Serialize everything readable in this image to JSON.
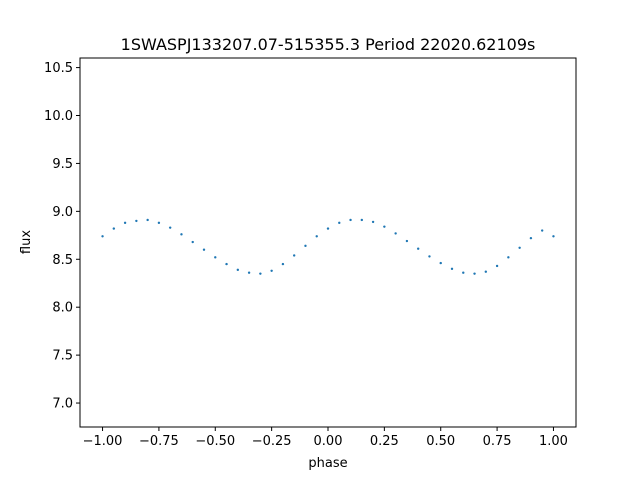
{
  "chart_data": {
    "type": "scatter",
    "title": "1SWASPJ133207.07-515355.3 Period 22020.62109s",
    "xlabel": "phase",
    "ylabel": "flux",
    "xlim": [
      -1.1,
      1.1
    ],
    "ylim": [
      6.75,
      10.6
    ],
    "x_ticks": [
      -1.0,
      -0.75,
      -0.5,
      -0.25,
      0.0,
      0.25,
      0.5,
      0.75,
      1.0
    ],
    "x_tick_labels": [
      "−1.00",
      "−0.75",
      "−0.50",
      "−0.25",
      "0.00",
      "0.25",
      "0.50",
      "0.75",
      "1.00"
    ],
    "y_ticks": [
      7.0,
      7.5,
      8.0,
      8.5,
      9.0,
      9.5,
      10.0,
      10.5
    ],
    "y_tick_labels": [
      "7.0",
      "7.5",
      "8.0",
      "8.5",
      "9.0",
      "9.5",
      "10.0",
      "10.5"
    ],
    "grid": false,
    "marker_color": "#1f77b4",
    "series": [
      {
        "x": [
          -1.0,
          -0.95,
          -0.9,
          -0.85,
          -0.8,
          -0.75,
          -0.7,
          -0.65,
          -0.6,
          -0.55,
          -0.5,
          -0.45,
          -0.4,
          -0.35,
          -0.3,
          -0.25,
          -0.2,
          -0.15,
          -0.1,
          -0.05,
          0.0,
          0.05,
          0.1,
          0.15,
          0.2,
          0.25,
          0.3,
          0.35,
          0.4,
          0.45,
          0.5,
          0.55,
          0.6,
          0.65,
          0.7,
          0.75,
          0.8,
          0.85,
          0.9,
          0.95,
          1.0
        ],
        "y": [
          8.74,
          8.82,
          8.88,
          8.9,
          8.91,
          8.88,
          8.83,
          8.76,
          8.68,
          8.6,
          8.52,
          8.45,
          8.39,
          8.36,
          8.35,
          8.38,
          8.45,
          8.54,
          8.64,
          8.74,
          8.82,
          8.88,
          8.91,
          8.91,
          8.89,
          8.84,
          8.77,
          8.69,
          8.61,
          8.53,
          8.46,
          8.4,
          8.36,
          8.35,
          8.37,
          8.43,
          8.52,
          8.62,
          8.72,
          8.8,
          8.74
        ]
      }
    ]
  }
}
